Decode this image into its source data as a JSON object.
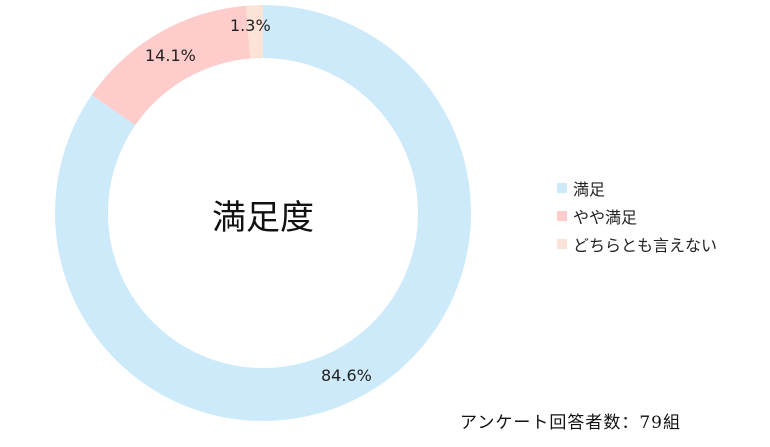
{
  "chart_data": {
    "type": "pie",
    "variant": "donut",
    "title": "満足度",
    "categories": [
      "満足",
      "やや満足",
      "どちらとも言えない"
    ],
    "values": [
      84.6,
      14.1,
      1.3
    ],
    "labels": [
      "84.6%",
      "14.1%",
      "1.3%"
    ],
    "colors": [
      "#cdeafb",
      "#ffcccc",
      "#fbe3d8"
    ],
    "legend_position": "right",
    "note": "アンケート回答者数：79組"
  },
  "center_title": "満足度",
  "labels": {
    "satisfied": "84.6%",
    "somewhat": "14.1%",
    "neither": "1.3%"
  },
  "legend": [
    {
      "label": "満足",
      "color": "#cdeafb"
    },
    {
      "label": "やや満足",
      "color": "#ffcccc"
    },
    {
      "label": "どちらとも言えない",
      "color": "#fbe3d8"
    }
  ],
  "footnote": "アンケート回答者数：79組"
}
